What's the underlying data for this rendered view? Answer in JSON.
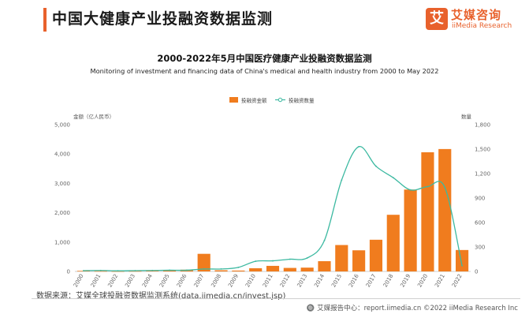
{
  "header": {
    "title": "中国大健康产业投融资数据监测"
  },
  "brand": {
    "logo_glyph": "艾",
    "name_cn": "艾媒咨询",
    "name_en": "iiMedia Research",
    "accent_color": "#e8612c"
  },
  "footer": {
    "source": "数据来源：艾媒全球投融资数据监测系统(data.iimedia.cn/invest.jsp)",
    "copyright": "🔘 艾媒报告中心：report.iimedia.cn   ©2022  iiMedia Research  Inc"
  },
  "chart_data": {
    "type": "bar+line",
    "title": "2000-2022年5月中国医疗健康产业投融资数据监测",
    "subtitle": "Monitoring of investment and financing data of China's medical and health industry from 2000 to May 2022",
    "ylabel_left": "金额（亿人民币）",
    "ylabel_right": "数量",
    "ylim_left": [
      0,
      5000
    ],
    "yticks_left": [
      "0",
      "1,000",
      "2,000",
      "3,000",
      "4,000",
      "5,000"
    ],
    "ylim_right": [
      0,
      1800
    ],
    "yticks_right": [
      "0",
      "300",
      "600",
      "900",
      "1,200",
      "1,500",
      "1,800"
    ],
    "legend_position": "top-center",
    "categories": [
      "2000",
      "2001",
      "2002",
      "2003",
      "2004",
      "2005",
      "2006",
      "2007",
      "2008",
      "2009",
      "2010",
      "2011",
      "2012",
      "2013",
      "2014",
      "2015",
      "2016",
      "2017",
      "2018",
      "2019",
      "2020",
      "2021",
      "2022"
    ],
    "series": [
      {
        "name": "投融资金额",
        "kind": "bar",
        "axis": "left",
        "color": "#f07c1e",
        "values": [
          20,
          10,
          5,
          10,
          20,
          40,
          60,
          600,
          40,
          30,
          110,
          190,
          120,
          130,
          350,
          900,
          720,
          1080,
          1930,
          2790,
          4060,
          4170,
          730
        ]
      },
      {
        "name": "投融资数量",
        "kind": "line",
        "axis": "right",
        "color": "#3cb9a1",
        "values": [
          10,
          12,
          8,
          10,
          12,
          15,
          15,
          30,
          30,
          50,
          125,
          130,
          150,
          165,
          380,
          1120,
          1530,
          1290,
          1150,
          1000,
          1040,
          1030,
          70
        ]
      }
    ]
  }
}
